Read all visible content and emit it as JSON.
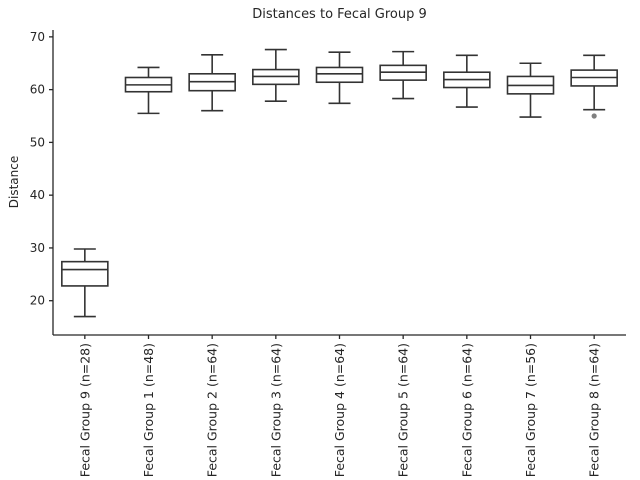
{
  "chart_data": {
    "type": "boxplot",
    "title": "Distances to Fecal Group 9",
    "xlabel": "",
    "ylabel": "Distance",
    "ylim": [
      13.5,
      71.3
    ],
    "yticks": [
      20,
      30,
      40,
      50,
      60,
      70
    ],
    "grid": false,
    "legend": false,
    "categories": [
      "Fecal Group 9 (n=28)",
      "Fecal Group 1 (n=48)",
      "Fecal Group 2 (n=64)",
      "Fecal Group 3 (n=64)",
      "Fecal Group 4 (n=64)",
      "Fecal Group 5 (n=64)",
      "Fecal Group 6 (n=64)",
      "Fecal Group 7 (n=56)",
      "Fecal Group 8 (n=64)"
    ],
    "boxes": [
      {
        "label": "Fecal Group 9 (n=28)",
        "n": 28,
        "whisker_low": 17.0,
        "q1": 22.8,
        "median": 25.9,
        "q3": 27.4,
        "whisker_high": 29.8,
        "outliers": []
      },
      {
        "label": "Fecal Group 1 (n=48)",
        "n": 48,
        "whisker_low": 55.5,
        "q1": 59.6,
        "median": 60.9,
        "q3": 62.3,
        "whisker_high": 64.2,
        "outliers": []
      },
      {
        "label": "Fecal Group 2 (n=64)",
        "n": 64,
        "whisker_low": 56.0,
        "q1": 59.8,
        "median": 61.5,
        "q3": 63.0,
        "whisker_high": 66.6,
        "outliers": []
      },
      {
        "label": "Fecal Group 3 (n=64)",
        "n": 64,
        "whisker_low": 57.8,
        "q1": 61.0,
        "median": 62.5,
        "q3": 63.8,
        "whisker_high": 67.6,
        "outliers": []
      },
      {
        "label": "Fecal Group 4 (n=64)",
        "n": 64,
        "whisker_low": 57.4,
        "q1": 61.4,
        "median": 63.0,
        "q3": 64.2,
        "whisker_high": 67.1,
        "outliers": []
      },
      {
        "label": "Fecal Group 5 (n=64)",
        "n": 64,
        "whisker_low": 58.3,
        "q1": 61.8,
        "median": 63.3,
        "q3": 64.6,
        "whisker_high": 67.2,
        "outliers": []
      },
      {
        "label": "Fecal Group 6 (n=64)",
        "n": 64,
        "whisker_low": 56.7,
        "q1": 60.4,
        "median": 61.9,
        "q3": 63.3,
        "whisker_high": 66.5,
        "outliers": []
      },
      {
        "label": "Fecal Group 7 (n=56)",
        "n": 56,
        "whisker_low": 54.8,
        "q1": 59.2,
        "median": 60.8,
        "q3": 62.5,
        "whisker_high": 65.0,
        "outliers": []
      },
      {
        "label": "Fecal Group 8 (n=64)",
        "n": 64,
        "whisker_low": 56.2,
        "q1": 60.7,
        "median": 62.3,
        "q3": 63.7,
        "whisker_high": 66.5,
        "outliers": [
          55.0
        ]
      }
    ],
    "style": {
      "line_color": "#333333",
      "box_fill": "#ffffff",
      "outlier_color": "#808080",
      "text_color": "#262626",
      "background": "#ffffff"
    }
  }
}
